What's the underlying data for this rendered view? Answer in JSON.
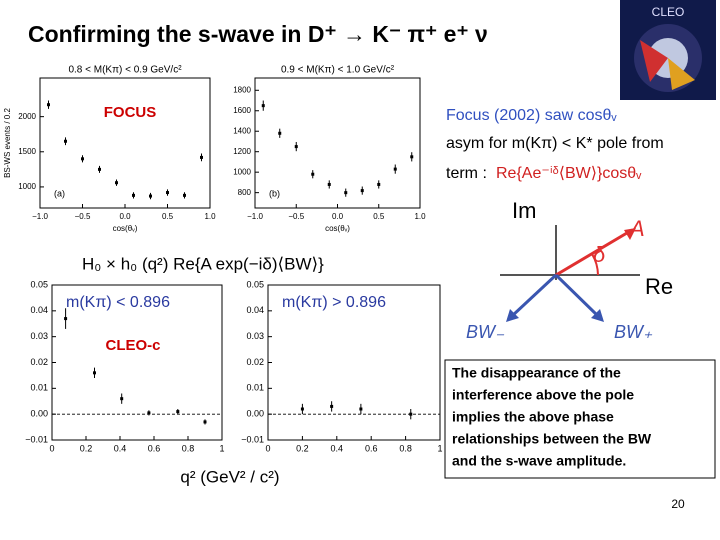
{
  "title": "Confirming the s-wave in D⁺ → K⁻ π⁺ e⁺ ν",
  "logo": "CLEO",
  "focus_label": "FOCUS",
  "cleo_label": "CLEO-c",
  "formula": "H₀ × h₀ (q²) Re{A exp(−iδ)⟨BW⟩}",
  "bottom_xlabel": "q² (GeV² / c²)",
  "right_text": {
    "line1": "Focus (2002) saw cosθᵥ",
    "line2": "asym for m(Kπ) < K* pole from",
    "term_prefix": "term :",
    "term_expr": "Re{Ae⁻ⁱᵟ⟨BW⟩}cosθᵥ"
  },
  "diagram": {
    "im": "Im",
    "re": "Re",
    "a": "A",
    "delta": "δ",
    "bw_minus": "BW₋",
    "bw_plus": "BW₊"
  },
  "note_box": [
    "The disappearance of the",
    "interference above the pole",
    "implies the above phase",
    "relationships between the BW",
    "and the s-wave amplitude."
  ],
  "page_number": "20",
  "chart_data": [
    {
      "type": "scatter",
      "title": "0.8 < M(Kπ) < 0.9 GeV/c²",
      "ylabel": "BS-WS events / 0.2",
      "xlabel": "cos(θᵥ)",
      "tag": "(a)",
      "color": "#000000",
      "x": [
        -0.9,
        -0.7,
        -0.5,
        -0.3,
        -0.1,
        0.1,
        0.3,
        0.5,
        0.7,
        0.9
      ],
      "values": [
        2170,
        1650,
        1400,
        1250,
        1060,
        880,
        870,
        920,
        880,
        1420
      ],
      "errors": [
        60,
        55,
        50,
        50,
        45,
        45,
        45,
        45,
        45,
        55
      ],
      "xlim": [
        -1,
        1
      ],
      "ylim": [
        700,
        2550
      ],
      "xticks": [
        {
          "value": -1,
          "label": "−1.0"
        },
        {
          "value": -0.5,
          "label": "−0.5"
        },
        {
          "value": 0,
          "label": "0.0"
        },
        {
          "value": 0.5,
          "label": "0.5"
        },
        {
          "value": 1,
          "label": "1.0"
        }
      ],
      "yticks": [
        1000,
        1500,
        2000
      ]
    },
    {
      "type": "scatter",
      "title": "0.9 < M(Kπ) < 1.0 GeV/c²",
      "xlabel": "cos(θᵥ)",
      "tag": "(b)",
      "color": "#000000",
      "x": [
        -0.9,
        -0.7,
        -0.5,
        -0.3,
        -0.1,
        0.1,
        0.3,
        0.5,
        0.7,
        0.9
      ],
      "values": [
        1650,
        1380,
        1250,
        980,
        880,
        800,
        820,
        880,
        1030,
        1150
      ],
      "errors": [
        50,
        45,
        45,
        40,
        40,
        40,
        40,
        40,
        45,
        45
      ],
      "xlim": [
        -1,
        1
      ],
      "ylim": [
        650,
        1920
      ],
      "xticks": [
        {
          "value": -1,
          "label": "−1.0"
        },
        {
          "value": -0.5,
          "label": "−0.5"
        },
        {
          "value": 0,
          "label": "0.0"
        },
        {
          "value": 0.5,
          "label": "0.5"
        },
        {
          "value": 1,
          "label": "1.0"
        }
      ],
      "yticks": [
        800,
        1000,
        1200,
        1400,
        1600,
        1800
      ]
    },
    {
      "type": "scatter",
      "annotation": "m(Kπ) < 0.896",
      "color": "#000000",
      "x": [
        0.08,
        0.25,
        0.41,
        0.57,
        0.74,
        0.9
      ],
      "values": [
        0.037,
        0.016,
        0.006,
        0.0005,
        0.001,
        -0.003
      ],
      "errors": [
        0.004,
        0.002,
        0.002,
        0.001,
        0.001,
        0.001
      ],
      "xlim": [
        0,
        1
      ],
      "ylim": [
        -0.01,
        0.05
      ],
      "xticks": [
        0,
        0.2,
        0.4,
        0.6,
        0.8,
        1
      ],
      "yticks": [
        {
          "value": 0.05,
          "label": "0.05"
        },
        {
          "value": 0.04,
          "label": "0.04"
        },
        {
          "value": 0.03,
          "label": "0.03"
        },
        {
          "value": 0.02,
          "label": "0.02"
        },
        {
          "value": 0.01,
          "label": "0.01"
        },
        {
          "value": 0,
          "label": "0.00"
        },
        {
          "value": -0.01,
          "label": "−0.01"
        }
      ]
    },
    {
      "type": "scatter",
      "annotation": "m(Kπ) > 0.896",
      "color": "#000000",
      "x": [
        0.2,
        0.37,
        0.54,
        0.83
      ],
      "values": [
        0.002,
        0.003,
        0.002,
        0.0
      ],
      "errors": [
        0.002,
        0.002,
        0.002,
        0.002
      ],
      "xlim": [
        0,
        1
      ],
      "ylim": [
        -0.01,
        0.05
      ],
      "xticks": [
        0,
        0.2,
        0.4,
        0.6,
        0.8,
        1
      ],
      "yticks": [
        {
          "value": 0.05,
          "label": "0.05"
        },
        {
          "value": 0.04,
          "label": "0.04"
        },
        {
          "value": 0.03,
          "label": "0.03"
        },
        {
          "value": 0.02,
          "label": "0.02"
        },
        {
          "value": 0.01,
          "label": "0.01"
        },
        {
          "value": 0,
          "label": "0.00"
        },
        {
          "value": -0.01,
          "label": "−0.01"
        }
      ]
    }
  ]
}
